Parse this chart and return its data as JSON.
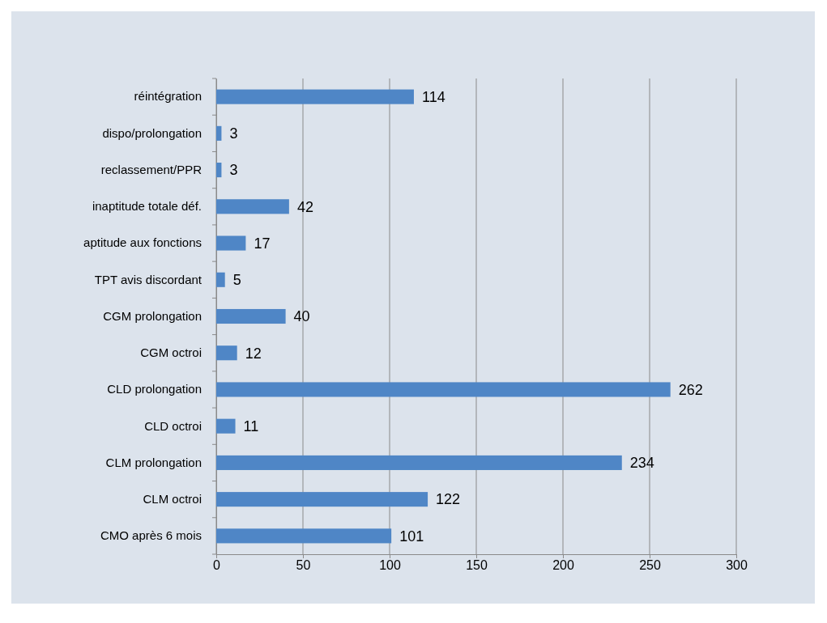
{
  "chart_data": {
    "type": "bar",
    "orientation": "horizontal",
    "categories": [
      "réintégration",
      "dispo/prolongation",
      "reclassement/PPR",
      "inaptitude totale déf.",
      "aptitude aux fonctions",
      "TPT avis discordant",
      "CGM prolongation",
      "CGM octroi",
      "CLD prolongation",
      "CLD octroi",
      "CLM prolongation",
      "CLM octroi",
      "CMO après 6 mois"
    ],
    "values": [
      114,
      3,
      3,
      42,
      17,
      5,
      40,
      12,
      262,
      11,
      234,
      122,
      101
    ],
    "color": "#4f86c6",
    "xlim": [
      0,
      300
    ],
    "xticks": [
      0,
      50,
      100,
      150,
      200,
      250,
      300
    ],
    "grid": "x",
    "data_labels": true
  }
}
